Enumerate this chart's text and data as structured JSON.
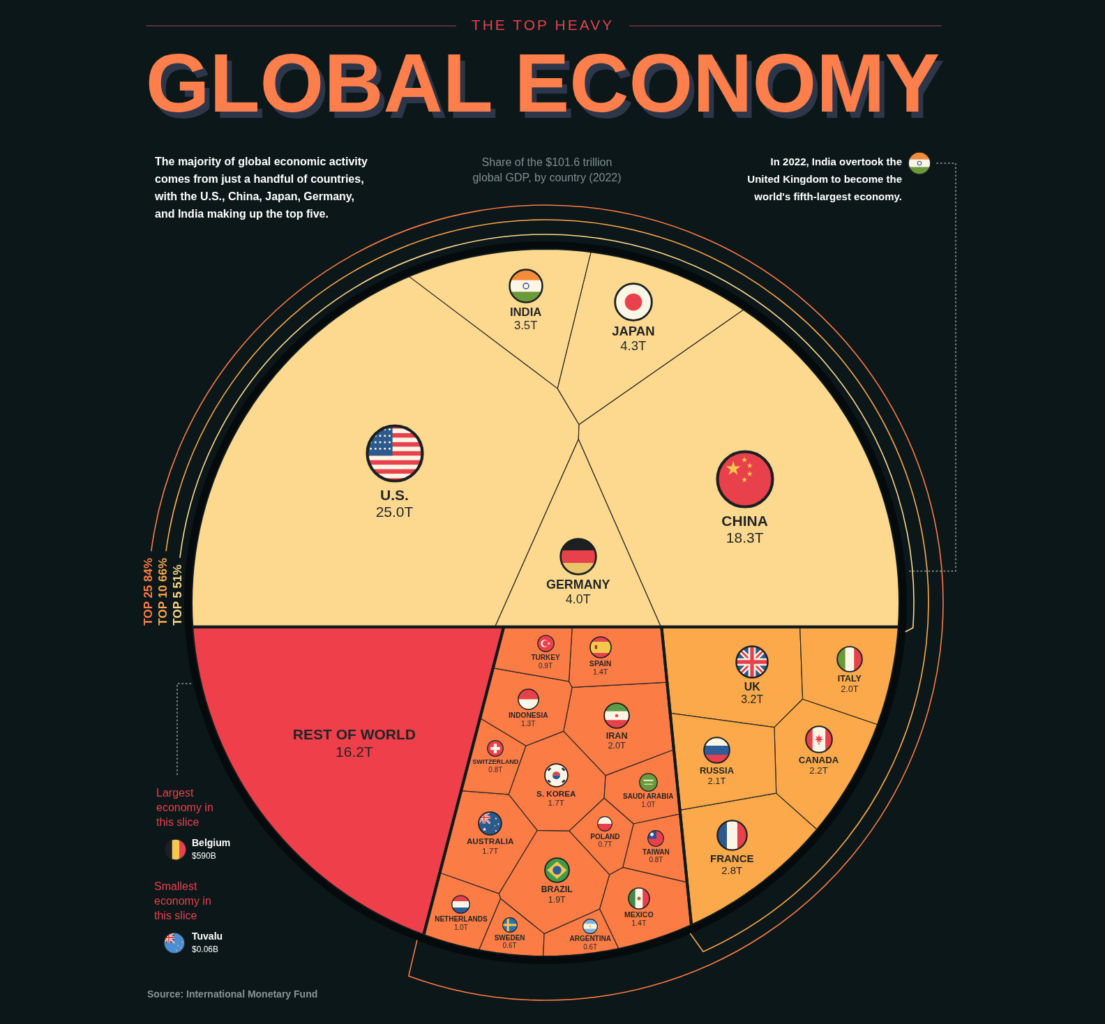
{
  "chart_data": {
    "type": "other",
    "title": "GLOBAL ECONOMY",
    "subtitle": "Share of the $101.6 trillion global GDP, by country (2022)",
    "categories": [
      "U.S.",
      "CHINA",
      "JAPAN",
      "GERMANY",
      "INDIA",
      "UK",
      "FRANCE",
      "CANADA",
      "RUSSIA",
      "ITALY",
      "IRAN",
      "BRAZIL",
      "S. KOREA",
      "AUSTRALIA",
      "SPAIN",
      "MEXICO",
      "INDONESIA",
      "SAUDI ARABIA",
      "NETHERLANDS",
      "TURKEY",
      "SWITZERLAND",
      "TAIWAN",
      "POLAND",
      "SWEDEN",
      "ARGENTINA",
      "REST OF WORLD"
    ],
    "values": [
      25.0,
      18.3,
      4.3,
      4.0,
      3.5,
      3.2,
      2.8,
      2.2,
      2.1,
      2.0,
      2.0,
      1.9,
      1.7,
      1.7,
      1.4,
      1.4,
      1.3,
      1.0,
      1.0,
      0.9,
      0.8,
      0.8,
      0.7,
      0.6,
      0.6,
      16.2
    ],
    "value_labels": [
      "25.0T",
      "18.3T",
      "4.3T",
      "4.0T",
      "3.5T",
      "3.2T",
      "2.8T",
      "2.2T",
      "2.1T",
      "2.0T",
      "2.0T",
      "1.9T",
      "1.7T",
      "1.7T",
      "1.4T",
      "1.4T",
      "1.3T",
      "1.0T",
      "1.0T",
      "0.9T",
      "0.8T",
      "0.8T",
      "0.7T",
      "0.6T",
      "0.6T",
      "16.2T"
    ],
    "colors": [
      "#fdd98f",
      "#fdd98f",
      "#fdd98f",
      "#fdd98f",
      "#fdd98f",
      "#fba94b",
      "#fba94b",
      "#fba94b",
      "#fba94b",
      "#fba94b",
      "#fc7c46",
      "#fc7c46",
      "#fc7c46",
      "#fc7c46",
      "#fc7c46",
      "#fc7c46",
      "#fc7c46",
      "#fc7c46",
      "#fc7c46",
      "#fc7c46",
      "#fc7c46",
      "#fc7c46",
      "#fc7c46",
      "#fc7c46",
      "#fc7c46",
      "#ef3f4b"
    ],
    "annotations": [
      "THE TOP HEAVY",
      "The majority of global economic activity comes from just a handful of countries, with the U.S., China, Japan, Germany, and India making up the top five.",
      "In 2022, India overtook the United Kingdom to become the world's fifth-largest economy.",
      "TOP 25 84%",
      "TOP 10 66%",
      "TOP 5 51%",
      "Largest economy in this slice",
      "Belgium",
      "$590B",
      "Smallest economy in this slice",
      "Tuvalu",
      "$0.06B",
      "Source: International Monetary Fund"
    ]
  }
}
